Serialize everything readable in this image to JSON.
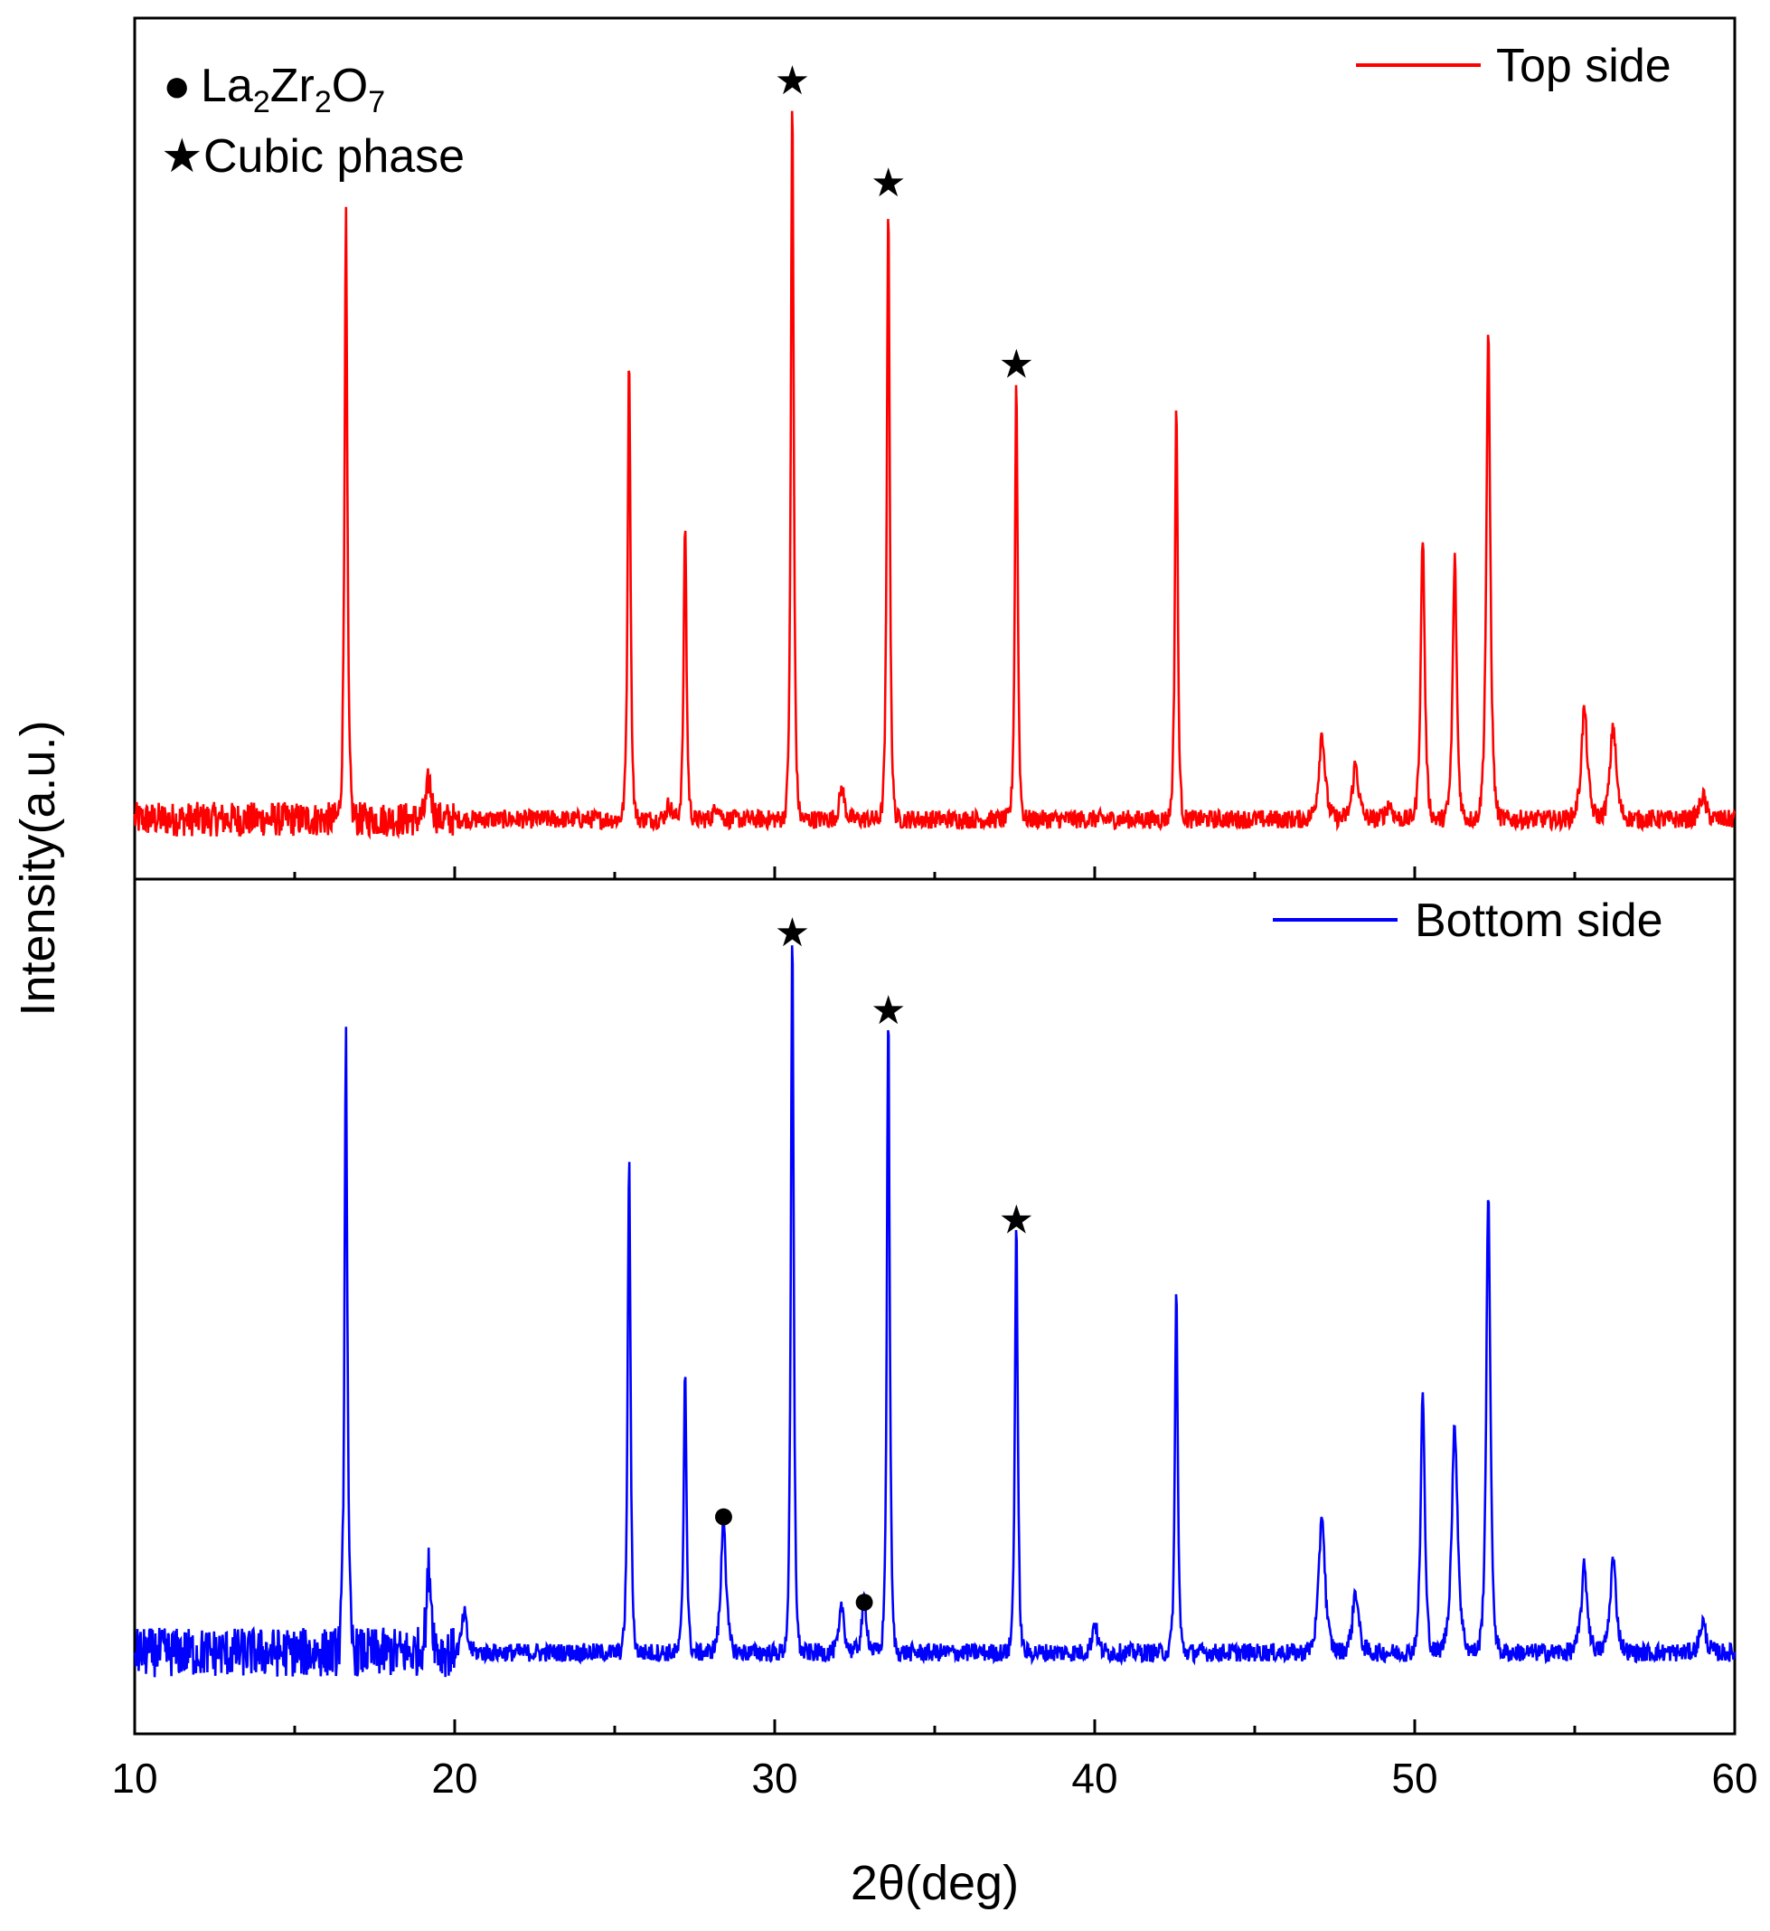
{
  "chart_data": {
    "type": "line",
    "title": "",
    "xlabel": "2θ(deg)",
    "ylabel": "Intensity(a.u.)",
    "xlim": [
      10,
      60
    ],
    "ylim": [
      0,
      100
    ],
    "x_ticks": [
      "10",
      "20",
      "30",
      "40",
      "50",
      "60"
    ],
    "x_tick_values": [
      10,
      20,
      30,
      40,
      50,
      60
    ],
    "phase_legend": [
      {
        "symbol": "●",
        "label": "La",
        "sub1": "2",
        "mid": "Zr",
        "sub2": "2",
        "end": "O",
        "sub3": "7"
      },
      {
        "symbol": "★",
        "label": "Cubic phase"
      }
    ],
    "panels": [
      {
        "name": "Top side",
        "color": "#ff0000",
        "baseline": 3,
        "peaks": [
          {
            "x": 16.6,
            "h": 76
          },
          {
            "x": 19.2,
            "h": 5
          },
          {
            "x": 25.45,
            "h": 59
          },
          {
            "x": 26.7,
            "h": 2
          },
          {
            "x": 27.2,
            "h": 38
          },
          {
            "x": 28.2,
            "h": 2
          },
          {
            "x": 30.55,
            "h": 92
          },
          {
            "x": 32.1,
            "h": 4
          },
          {
            "x": 33.55,
            "h": 79
          },
          {
            "x": 37.55,
            "h": 56
          },
          {
            "x": 42.55,
            "h": 53
          },
          {
            "x": 47.1,
            "h": 11
          },
          {
            "x": 48.15,
            "h": 7
          },
          {
            "x": 49.2,
            "h": 2
          },
          {
            "x": 50.25,
            "h": 36
          },
          {
            "x": 51.25,
            "h": 33
          },
          {
            "x": 52.3,
            "h": 61
          },
          {
            "x": 55.3,
            "h": 14
          },
          {
            "x": 56.2,
            "h": 12
          },
          {
            "x": 59.0,
            "h": 3
          }
        ],
        "markers": [
          {
            "x": 30.55,
            "h": 92,
            "symbol": "★"
          },
          {
            "x": 33.55,
            "h": 79,
            "symbol": "★"
          },
          {
            "x": 37.55,
            "h": 56,
            "symbol": "★"
          }
        ]
      },
      {
        "name": "Bottom side",
        "color": "#0000ff",
        "baseline": 5,
        "peaks": [
          {
            "x": 16.6,
            "h": 80
          },
          {
            "x": 19.2,
            "h": 11
          },
          {
            "x": 20.3,
            "h": 5
          },
          {
            "x": 25.45,
            "h": 64
          },
          {
            "x": 27.2,
            "h": 37
          },
          {
            "x": 28.4,
            "h": 18
          },
          {
            "x": 30.55,
            "h": 93
          },
          {
            "x": 32.1,
            "h": 6
          },
          {
            "x": 32.8,
            "h": 7
          },
          {
            "x": 33.55,
            "h": 83
          },
          {
            "x": 37.55,
            "h": 56
          },
          {
            "x": 40.0,
            "h": 4
          },
          {
            "x": 42.55,
            "h": 47
          },
          {
            "x": 47.1,
            "h": 18
          },
          {
            "x": 48.15,
            "h": 8
          },
          {
            "x": 50.25,
            "h": 34
          },
          {
            "x": 51.25,
            "h": 29
          },
          {
            "x": 52.3,
            "h": 60
          },
          {
            "x": 55.3,
            "h": 11
          },
          {
            "x": 56.2,
            "h": 12
          },
          {
            "x": 59.0,
            "h": 4
          }
        ],
        "markers": [
          {
            "x": 30.55,
            "h": 93,
            "symbol": "★"
          },
          {
            "x": 33.55,
            "h": 83,
            "symbol": "★"
          },
          {
            "x": 37.55,
            "h": 56,
            "symbol": "★"
          },
          {
            "x": 28.4,
            "h": 18,
            "symbol": "●"
          },
          {
            "x": 32.8,
            "h": 7,
            "symbol": "●"
          }
        ]
      }
    ]
  }
}
